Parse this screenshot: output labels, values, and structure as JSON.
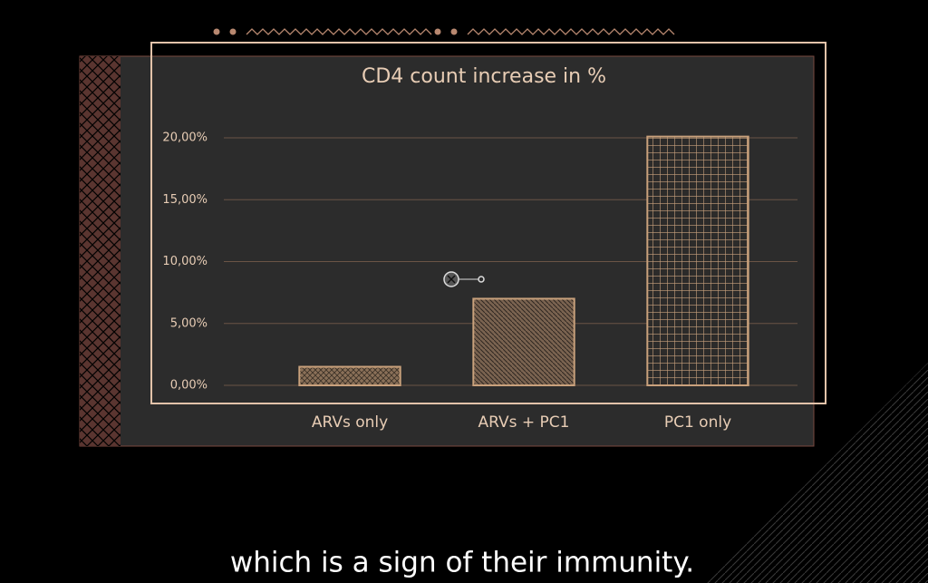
{
  "chart_data": {
    "type": "bar",
    "title": "CD4 count increase in %",
    "categories": [
      "ARVs only",
      "ARVs + PC1",
      "PC1 only"
    ],
    "values": [
      1.5,
      7.0,
      20.1
    ],
    "color": "#c9a17c",
    "ylim": [
      0,
      21
    ],
    "yticks": [
      {
        "value": 0,
        "label": "0,00%"
      },
      {
        "value": 5,
        "label": "5,00%"
      },
      {
        "value": 10,
        "label": "10,00%"
      },
      {
        "value": 15,
        "label": "15,00%"
      },
      {
        "value": 20,
        "label": "20,00%"
      }
    ],
    "grid": true
  },
  "caption": "which is a sign of their immunity."
}
